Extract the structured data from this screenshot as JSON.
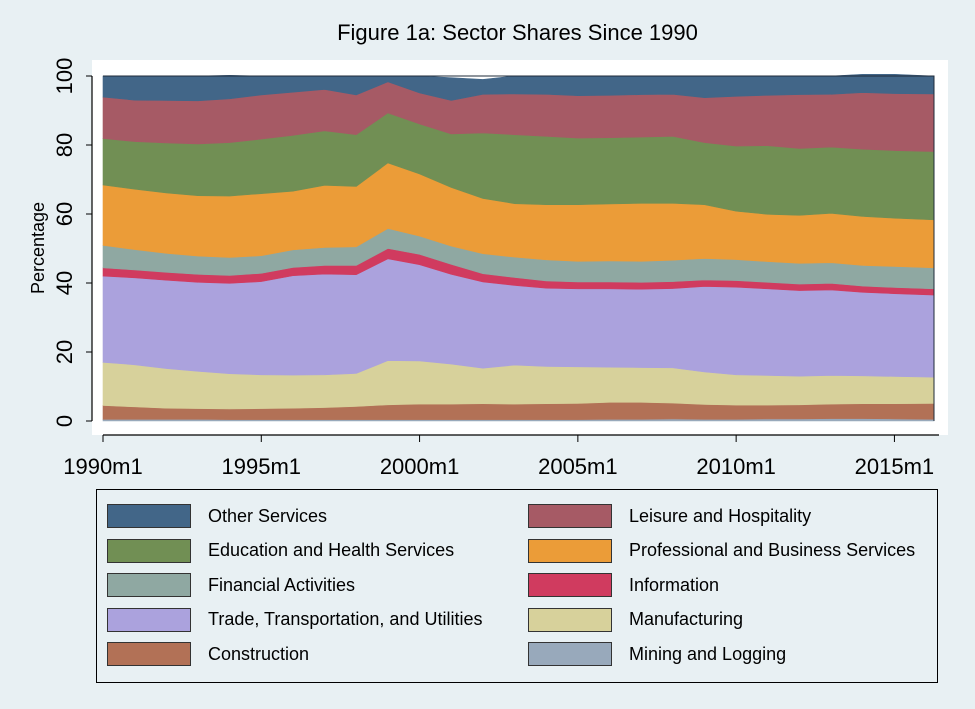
{
  "chart_data": {
    "type": "area",
    "title": "Figure 1a: Sector Shares Since 1990",
    "xlabel": "",
    "ylabel": "Percentage",
    "ylim": [
      0,
      100
    ],
    "xlim": [
      1990.0,
      2016.25
    ],
    "yticks": [
      0,
      20,
      40,
      60,
      80,
      100
    ],
    "xticks": [
      {
        "value": 1990,
        "label": "1990m1"
      },
      {
        "value": 1995,
        "label": "1995m1"
      },
      {
        "value": 2000,
        "label": "2000m1"
      },
      {
        "value": 2005,
        "label": "2005m1"
      },
      {
        "value": 2010,
        "label": "2010m1"
      },
      {
        "value": 2015,
        "label": "2015m1"
      }
    ],
    "x": [
      1990,
      1991,
      1992,
      1993,
      1994,
      1995,
      1996,
      1997,
      1998,
      1999,
      2000,
      2001,
      2002,
      2003,
      2004,
      2005,
      2006,
      2007,
      2008,
      2009,
      2010,
      2011,
      2012,
      2013,
      2014,
      2015,
      2016.25
    ],
    "series": [
      {
        "name": "Mining and Logging",
        "color": "#98a9bb",
        "values": [
          0.5,
          0.5,
          0.5,
          0.5,
          0.4,
          0.4,
          0.4,
          0.4,
          0.4,
          0.4,
          0.4,
          0.4,
          0.4,
          0.4,
          0.4,
          0.4,
          0.5,
          0.5,
          0.6,
          0.5,
          0.5,
          0.6,
          0.6,
          0.7,
          0.7,
          0.6,
          0.5
        ]
      },
      {
        "name": "Construction",
        "color": "#b27156",
        "values": [
          4.0,
          3.6,
          3.2,
          3.1,
          3.1,
          3.2,
          3.3,
          3.5,
          3.8,
          4.3,
          4.5,
          4.5,
          4.6,
          4.5,
          4.6,
          4.7,
          4.9,
          4.9,
          4.6,
          4.3,
          4.1,
          4.0,
          4.1,
          4.2,
          4.3,
          4.4,
          4.6
        ]
      },
      {
        "name": "Manufacturing",
        "color": "#d7d19b",
        "values": [
          12.5,
          12.2,
          11.5,
          10.8,
          10.2,
          9.8,
          9.6,
          9.5,
          9.6,
          12.8,
          12.5,
          11.6,
          10.3,
          11.3,
          10.8,
          10.6,
          10.2,
          10.1,
          10.2,
          9.4,
          8.8,
          8.6,
          8.3,
          8.3,
          8.1,
          7.9,
          7.6
        ]
      },
      {
        "name": "Trade, Transportation, and Utilities",
        "color": "#aba2dd",
        "values": [
          25.0,
          25.2,
          25.6,
          25.8,
          26.2,
          27.0,
          28.8,
          29.2,
          28.6,
          29.5,
          27.9,
          26.0,
          25.0,
          23.1,
          22.7,
          22.6,
          22.7,
          22.7,
          23.0,
          24.8,
          25.4,
          25.1,
          24.8,
          24.8,
          24.2,
          24.0,
          23.8
        ]
      },
      {
        "name": "Information",
        "color": "#d03b5f",
        "values": [
          2.4,
          2.3,
          2.3,
          2.3,
          2.3,
          2.4,
          2.4,
          2.5,
          2.7,
          3.0,
          3.0,
          2.9,
          2.4,
          2.3,
          2.1,
          2.0,
          2.0,
          2.0,
          2.0,
          1.9,
          1.9,
          1.9,
          1.9,
          1.9,
          1.8,
          1.8,
          1.8
        ]
      },
      {
        "name": "Financial Activities",
        "color": "#8fa8a2",
        "values": [
          6.5,
          5.9,
          5.5,
          5.3,
          5.2,
          5.1,
          5.1,
          5.2,
          5.4,
          5.8,
          5.3,
          5.3,
          5.8,
          5.9,
          6.1,
          6.0,
          6.1,
          6.1,
          6.2,
          6.2,
          6.1,
          6.0,
          6.0,
          6.0,
          6.0,
          6.1,
          6.1
        ]
      },
      {
        "name": "Professional and Business Services",
        "color": "#eb9c38",
        "values": [
          17.5,
          17.5,
          17.5,
          17.5,
          17.8,
          18.0,
          17.0,
          18.0,
          17.5,
          19.0,
          18.0,
          17.0,
          16.0,
          15.5,
          16.0,
          16.4,
          16.5,
          16.8,
          16.5,
          15.6,
          14.0,
          13.7,
          13.9,
          14.3,
          14.2,
          14.0,
          13.9
        ]
      },
      {
        "name": "Education and Health Services",
        "color": "#718f54",
        "values": [
          13.5,
          13.8,
          14.5,
          15.0,
          15.5,
          15.8,
          16.2,
          15.8,
          15.0,
          14.5,
          14.5,
          15.5,
          19.0,
          20.0,
          19.8,
          19.3,
          19.2,
          19.2,
          19.4,
          18.0,
          18.9,
          19.9,
          19.4,
          19.2,
          19.5,
          19.6,
          19.8
        ]
      },
      {
        "name": "Leisure and Hospitality",
        "color": "#a65a65",
        "values": [
          12.0,
          12.0,
          12.3,
          12.5,
          12.7,
          12.8,
          12.5,
          12.0,
          11.5,
          9.0,
          9.0,
          9.7,
          11.2,
          11.8,
          12.2,
          12.3,
          12.3,
          12.3,
          12.2,
          13.0,
          14.4,
          14.6,
          15.6,
          15.3,
          16.4,
          16.5,
          16.7
        ]
      },
      {
        "name": "Other Services",
        "color": "#426688",
        "values": [
          6.1,
          7.0,
          7.1,
          7.2,
          6.8,
          5.5,
          4.7,
          3.9,
          5.5,
          1.7,
          4.9,
          6.6,
          4.3,
          5.2,
          5.3,
          5.7,
          5.6,
          5.4,
          5.3,
          6.3,
          5.9,
          5.6,
          5.4,
          5.3,
          5.3,
          5.6,
          5.2
        ]
      }
    ],
    "legend": {
      "placement": "bottom",
      "columns": [
        [
          "Other Services",
          "Education and Health Services",
          "Financial Activities",
          "Trade, Transportation, and Utilities",
          "Construction"
        ],
        [
          "Leisure and Hospitality",
          "Professional and Business Services",
          "Information",
          "Manufacturing",
          "Mining and Logging"
        ]
      ]
    },
    "grid": false,
    "background": "#e8f0f3",
    "plot_background": "#ffffff"
  }
}
